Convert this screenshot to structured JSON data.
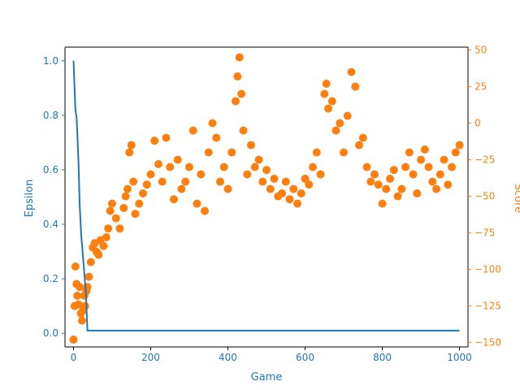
{
  "chart_data": {
    "type": "scatter",
    "title": "",
    "xlabel": "Game",
    "ylabel_left": "Epsilon",
    "ylabel_right": "Score",
    "colors": {
      "epsilon": "#1f77b4",
      "score": "#ff7f0e"
    },
    "xlim": [
      -22,
      1022
    ],
    "ylim_left": [
      -0.05,
      1.05
    ],
    "ylim_right": [
      -153,
      52
    ],
    "x_ticks": [
      0,
      200,
      400,
      600,
      800,
      1000
    ],
    "y_left_ticks": [
      0.0,
      0.2,
      0.4,
      0.6,
      0.8,
      1.0
    ],
    "y_right_ticks": [
      -150,
      -125,
      -100,
      -75,
      -50,
      -25,
      0,
      25,
      50
    ],
    "x_tick_labels": [
      "0",
      "200",
      "400",
      "600",
      "800",
      "1000"
    ],
    "y_left_tick_labels": [
      "0.0",
      "0.2",
      "0.4",
      "0.6",
      "0.8",
      "1.0"
    ],
    "y_right_tick_labels": [
      "−150",
      "−125",
      "−100",
      "−75",
      "−50",
      "−25",
      "0",
      "25",
      "50"
    ],
    "series": [
      {
        "type": "line",
        "axis": "left",
        "x": [
          0,
          5,
          8,
          10,
          13,
          16,
          20,
          24,
          28,
          32,
          36,
          40,
          100,
          200,
          300,
          400,
          500,
          600,
          700,
          800,
          900,
          1000
        ],
        "values": [
          1.0,
          0.82,
          0.79,
          0.73,
          0.63,
          0.47,
          0.36,
          0.29,
          0.22,
          0.15,
          0.01,
          0.01,
          0.01,
          0.01,
          0.01,
          0.01,
          0.01,
          0.01,
          0.01,
          0.01,
          0.01,
          0.01
        ]
      },
      {
        "type": "scatter",
        "axis": "right",
        "x": [
          0,
          3,
          5,
          8,
          10,
          13,
          16,
          19,
          22,
          25,
          28,
          30,
          33,
          36,
          40,
          45,
          50,
          55,
          60,
          65,
          70,
          78,
          85,
          90,
          95,
          100,
          110,
          120,
          130,
          135,
          140,
          145,
          150,
          155,
          160,
          170,
          180,
          190,
          200,
          210,
          220,
          230,
          240,
          250,
          260,
          270,
          280,
          290,
          300,
          310,
          320,
          330,
          340,
          350,
          360,
          370,
          380,
          390,
          400,
          410,
          420,
          425,
          430,
          435,
          440,
          450,
          460,
          470,
          480,
          490,
          500,
          510,
          520,
          530,
          540,
          550,
          560,
          570,
          580,
          590,
          600,
          610,
          620,
          630,
          640,
          650,
          655,
          660,
          670,
          680,
          690,
          700,
          710,
          720,
          730,
          740,
          750,
          760,
          770,
          780,
          790,
          800,
          810,
          820,
          830,
          840,
          850,
          860,
          870,
          880,
          890,
          900,
          910,
          920,
          930,
          940,
          950,
          960,
          970,
          980,
          990,
          1000
        ],
        "values": [
          -148,
          -125,
          -98,
          -110,
          -118,
          -124,
          -112,
          -130,
          -135,
          -128,
          -118,
          -125,
          -115,
          -112,
          -105,
          -95,
          -85,
          -82,
          -88,
          -90,
          -80,
          -84,
          -78,
          -72,
          -60,
          -55,
          -65,
          -72,
          -58,
          -50,
          -45,
          -20,
          -15,
          -40,
          -62,
          -55,
          -48,
          -42,
          -35,
          -12,
          -28,
          -40,
          -10,
          -30,
          -52,
          -25,
          -45,
          -40,
          -30,
          -5,
          -55,
          -35,
          -60,
          -20,
          0,
          -10,
          -40,
          -30,
          -45,
          -20,
          15,
          32,
          45,
          20,
          -5,
          -35,
          -15,
          -30,
          -25,
          -40,
          -32,
          -45,
          -38,
          -50,
          -48,
          -40,
          -52,
          -45,
          -55,
          -48,
          -38,
          -42,
          -30,
          -20,
          -35,
          20,
          27,
          10,
          15,
          -5,
          0,
          -20,
          5,
          35,
          25,
          -15,
          -10,
          -30,
          -40,
          -35,
          -42,
          -55,
          -45,
          -38,
          -32,
          -50,
          -45,
          -30,
          -20,
          -35,
          -48,
          -25,
          -18,
          -30,
          -40,
          -45,
          -35,
          -25,
          -42,
          -30,
          -20,
          -15
        ]
      }
    ]
  }
}
